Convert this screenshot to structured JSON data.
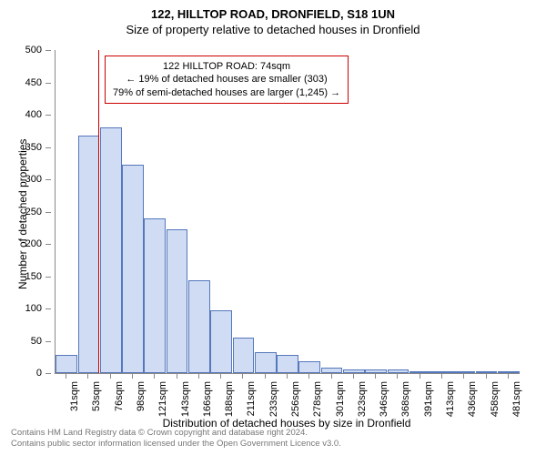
{
  "header": {
    "title_main": "122, HILLTOP ROAD, DRONFIELD, S18 1UN",
    "title_sub": "Size of property relative to detached houses in Dronfield"
  },
  "chart": {
    "type": "histogram",
    "y_axis_title": "Number of detached properties",
    "x_axis_title": "Distribution of detached houses by size in Dronfield",
    "ylim": [
      0,
      500
    ],
    "ytick_step": 50,
    "ytick_labels": [
      "0",
      "50",
      "100",
      "150",
      "200",
      "250",
      "300",
      "350",
      "400",
      "450",
      "500"
    ],
    "x_categories": [
      "31sqm",
      "53sqm",
      "76sqm",
      "98sqm",
      "121sqm",
      "143sqm",
      "166sqm",
      "188sqm",
      "211sqm",
      "233sqm",
      "256sqm",
      "278sqm",
      "301sqm",
      "323sqm",
      "346sqm",
      "368sqm",
      "391sqm",
      "413sqm",
      "436sqm",
      "458sqm",
      "481sqm"
    ],
    "values": [
      28,
      368,
      380,
      322,
      240,
      222,
      144,
      97,
      55,
      32,
      28,
      18,
      8,
      5,
      5,
      5,
      3,
      2,
      2,
      2,
      2
    ],
    "bar_fill": "#cfdcf3",
    "bar_stroke": "#5577bb",
    "background_color": "#ffffff",
    "marker": {
      "index_after": 1,
      "fraction": 0.95,
      "color": "#cc0000"
    },
    "annotation": {
      "line1": "122 HILLTOP ROAD: 74sqm",
      "line2": "← 19% of detached houses are smaller (303)",
      "line3": "79% of semi-detached houses are larger (1,245) →",
      "border_color": "#cc0000"
    }
  },
  "footer": {
    "line1": "Contains HM Land Registry data © Crown copyright and database right 2024.",
    "line2": "Contains public sector information licensed under the Open Government Licence v3.0."
  }
}
